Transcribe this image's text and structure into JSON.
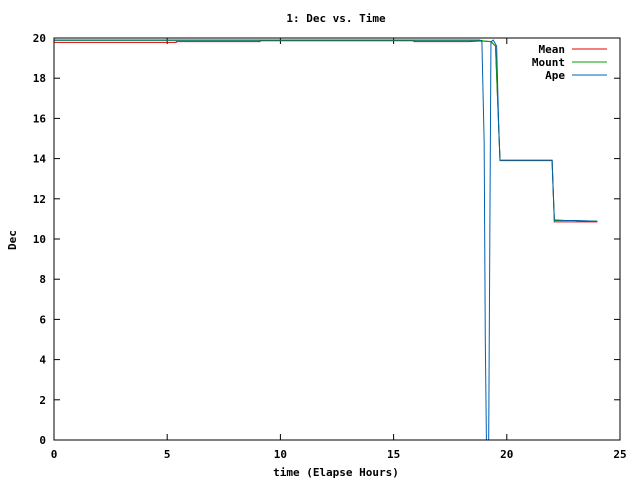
{
  "chart_data": {
    "type": "line",
    "title": "1: Dec vs. Time",
    "xlabel": "time (Elapse Hours)",
    "ylabel": "Dec",
    "xlim": [
      0,
      25
    ],
    "ylim": [
      0,
      20
    ],
    "xticks": [
      0,
      5,
      10,
      15,
      20,
      25
    ],
    "yticks": [
      0,
      2,
      4,
      6,
      8,
      10,
      12,
      14,
      16,
      18,
      20
    ],
    "grid": false,
    "legend_position": "top-right",
    "series": [
      {
        "name": "Mean",
        "color": "#e00000",
        "points": [
          [
            0,
            19.78
          ],
          [
            5.4,
            19.78
          ],
          [
            5.4,
            19.82
          ],
          [
            9.1,
            19.82
          ],
          [
            9.1,
            19.86
          ],
          [
            15.9,
            19.86
          ],
          [
            15.9,
            19.82
          ],
          [
            18.3,
            19.82
          ],
          [
            18.8,
            19.85
          ],
          [
            18.9,
            19.85
          ],
          [
            19.3,
            19.82
          ],
          [
            19.5,
            19.6
          ],
          [
            19.7,
            13.9
          ],
          [
            22.0,
            13.9
          ],
          [
            22.1,
            10.85
          ],
          [
            24,
            10.85
          ]
        ]
      },
      {
        "name": "Mount",
        "color": "#00a000",
        "points": [
          [
            0,
            19.88
          ],
          [
            18.9,
            19.88
          ],
          [
            18.95,
            19.86
          ],
          [
            19.3,
            19.82
          ],
          [
            19.5,
            19.6
          ],
          [
            19.7,
            13.92
          ],
          [
            22.0,
            13.92
          ],
          [
            22.1,
            10.92
          ],
          [
            23.0,
            10.92
          ],
          [
            23.1,
            10.9
          ],
          [
            24,
            10.88
          ]
        ]
      },
      {
        "name": "Ape",
        "color": "#0060b0",
        "points": [
          [
            0,
            19.9
          ],
          [
            18.6,
            19.9
          ],
          [
            18.8,
            19.9
          ],
          [
            18.9,
            19.8
          ],
          [
            19.0,
            14.8
          ],
          [
            19.05,
            5.0
          ],
          [
            19.1,
            0
          ],
          [
            19.2,
            0
          ],
          [
            19.25,
            10
          ],
          [
            19.3,
            19.8
          ],
          [
            19.4,
            19.9
          ],
          [
            19.5,
            19.7
          ],
          [
            19.55,
            19.6
          ],
          [
            19.65,
            15.3
          ],
          [
            19.7,
            13.92
          ],
          [
            22.0,
            13.92
          ],
          [
            22.05,
            12.4
          ],
          [
            22.1,
            10.95
          ],
          [
            22.6,
            10.92
          ],
          [
            23.1,
            10.92
          ],
          [
            24,
            10.88
          ]
        ]
      }
    ]
  }
}
